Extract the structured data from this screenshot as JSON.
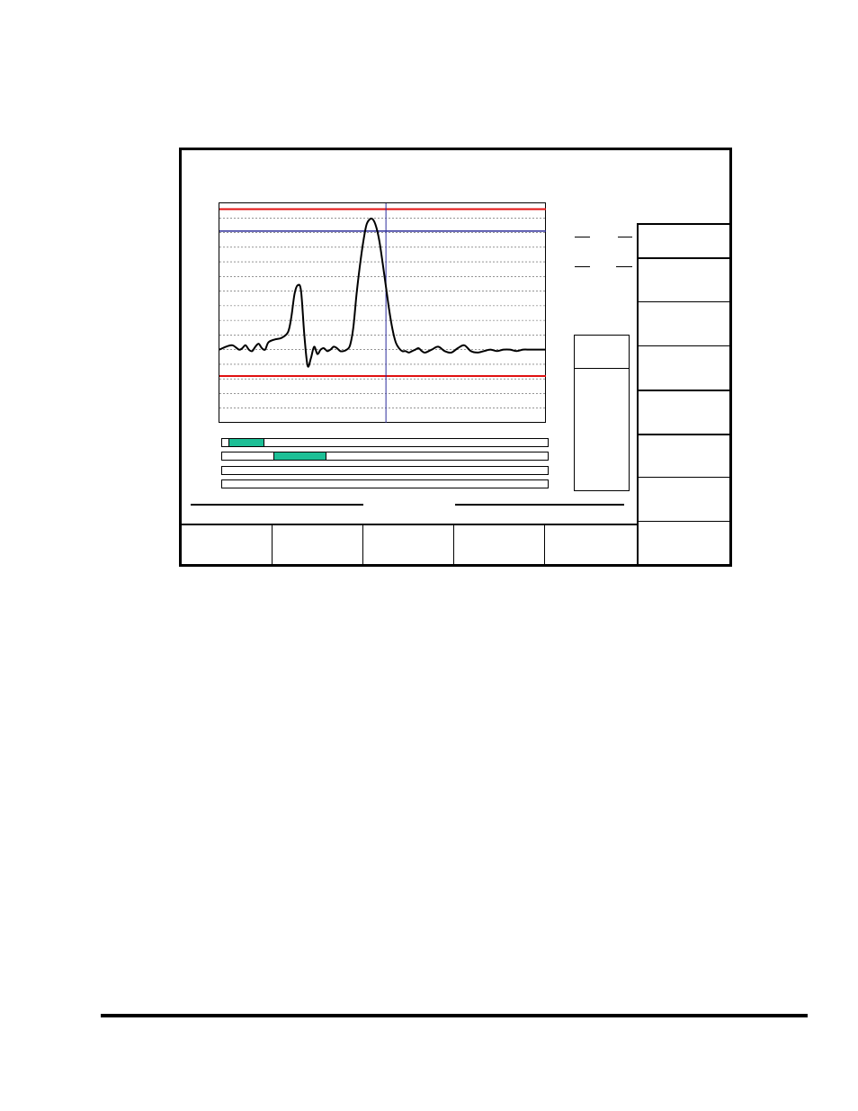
{
  "colors": {
    "frame": "#000000",
    "limit_line": "#e01010",
    "marker_line": "#2b2b9a",
    "grid_line": "#555555",
    "trace": "#000000",
    "progress_fill": "#1dbf96"
  },
  "chart_data": {
    "type": "line",
    "title": "",
    "xlabel": "",
    "ylabel": "",
    "xlim": [
      0,
      100
    ],
    "ylim": [
      0,
      15
    ],
    "grid": true,
    "horizontal_grid_levels": [
      1,
      2,
      3,
      4,
      5,
      6,
      7,
      8,
      9,
      10,
      11,
      12,
      13,
      14
    ],
    "upper_limit": 14.6,
    "lower_limit": 3.2,
    "reference_level": 13.1,
    "marker_x": 51,
    "series": [
      {
        "values_x": [
          0,
          2,
          4,
          6,
          7,
          8,
          9,
          10,
          11,
          12,
          13,
          14,
          15,
          17,
          19,
          21,
          22,
          23,
          24,
          25,
          26,
          27,
          28,
          29,
          30,
          31,
          32,
          33,
          34,
          35,
          36,
          37,
          38,
          39,
          40,
          41,
          42,
          43,
          44,
          45,
          46,
          47,
          48,
          49,
          50,
          51,
          52,
          53,
          54,
          55,
          56,
          57,
          58,
          59,
          60,
          61,
          62,
          63,
          65,
          67,
          69,
          71,
          73,
          75,
          77,
          79,
          81,
          83,
          85,
          87,
          89,
          91,
          93,
          95,
          97,
          100
        ],
        "values_y": [
          5.0,
          5.2,
          5.3,
          5.0,
          5.1,
          5.3,
          5.0,
          4.9,
          5.2,
          5.4,
          5.1,
          5.0,
          5.5,
          5.7,
          5.8,
          6.2,
          7.2,
          8.8,
          9.4,
          9.0,
          6.0,
          3.9,
          4.4,
          5.2,
          4.7,
          5.0,
          5.1,
          4.9,
          5.0,
          5.2,
          5.1,
          4.9,
          4.9,
          5.0,
          5.3,
          6.5,
          8.8,
          10.7,
          12.3,
          13.5,
          13.9,
          13.9,
          13.4,
          12.4,
          10.9,
          9.3,
          7.7,
          6.4,
          5.5,
          5.1,
          4.9,
          4.9,
          4.8,
          4.9,
          5.0,
          5.1,
          4.9,
          4.8,
          5.0,
          5.2,
          4.9,
          4.8,
          5.1,
          5.3,
          4.9,
          4.8,
          4.9,
          5.0,
          4.9,
          5.0,
          5.0,
          4.9,
          5.0,
          5.0,
          5.0,
          5.0
        ]
      }
    ]
  },
  "progress_bars": [
    {
      "start": 0.02,
      "end": 0.13
    },
    {
      "start": 0.157,
      "end": 0.32
    },
    {
      "start": 0.0,
      "end": 0.0
    },
    {
      "start": 0.0,
      "end": 0.0
    }
  ]
}
